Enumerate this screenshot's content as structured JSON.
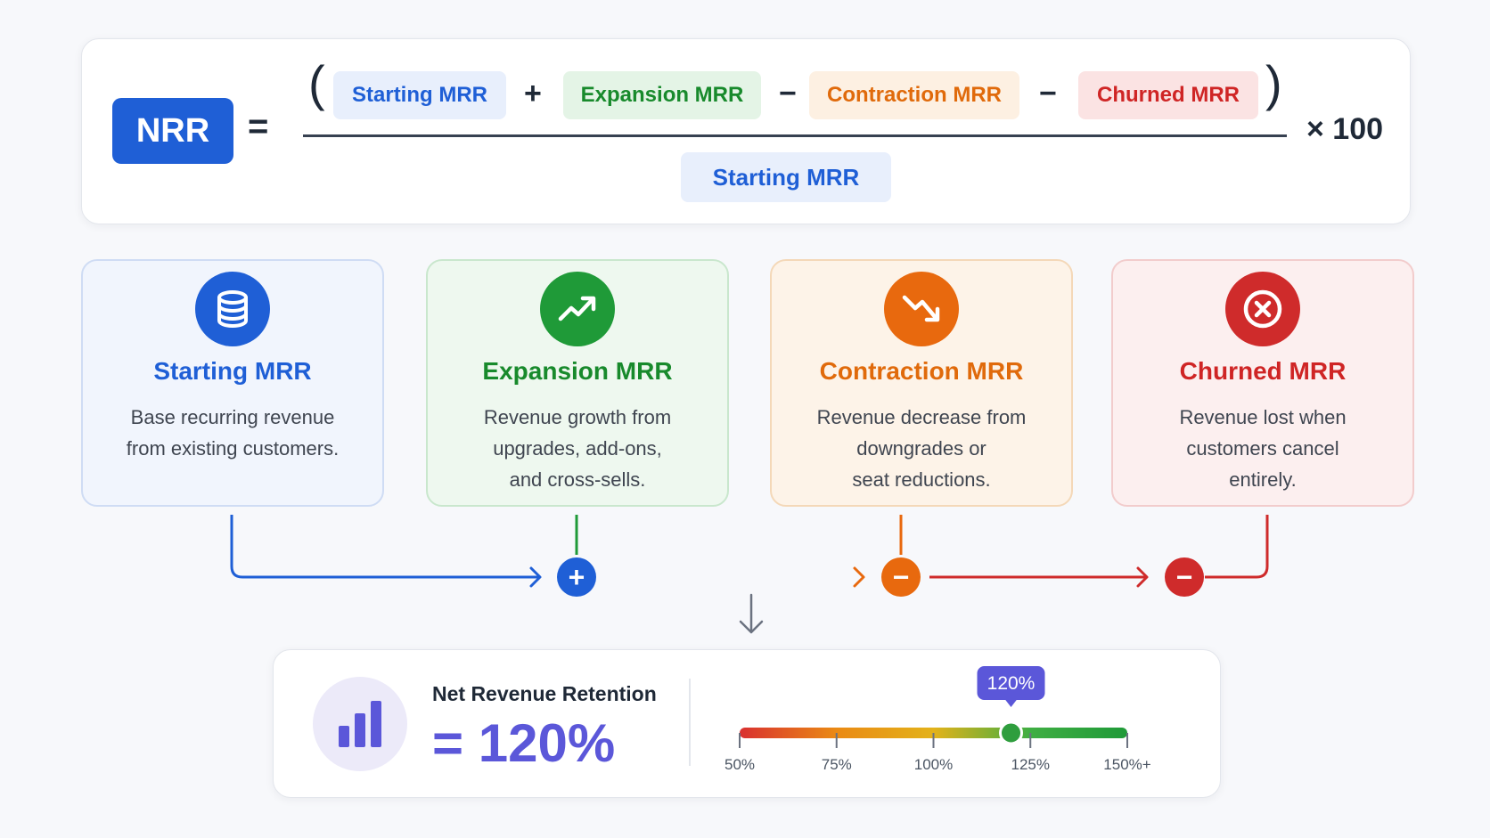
{
  "formula": {
    "lhs": "NRR",
    "equals": "=",
    "open_paren": "(",
    "close_paren": ")",
    "numerator": [
      {
        "label": "Starting MRR"
      },
      {
        "op": "+"
      },
      {
        "label": "Expansion MRR"
      },
      {
        "op": "−"
      },
      {
        "label": "Contraction MRR"
      },
      {
        "op": "−"
      },
      {
        "label": "Churned MRR"
      }
    ],
    "denominator": "Starting MRR",
    "multiplier": "× 100"
  },
  "components": [
    {
      "title": "Starting MRR",
      "icon": "database-icon",
      "color": "#1f5fd6",
      "desc_lines": [
        "Base recurring revenue",
        "from existing customers."
      ]
    },
    {
      "title": "Expansion MRR",
      "icon": "trending-up-icon",
      "color": "#1f9a38",
      "desc_lines": [
        "Revenue growth from",
        "upgrades, add-ons,",
        "and cross-sells."
      ]
    },
    {
      "title": "Contraction MRR",
      "icon": "trending-down-icon",
      "color": "#e8690e",
      "desc_lines": [
        "Revenue decrease from",
        "downgrades or",
        "seat reductions."
      ]
    },
    {
      "title": "Churned MRR",
      "icon": "x-circle-icon",
      "color": "#cf2b2b",
      "desc_lines": [
        "Revenue lost when",
        "customers cancel",
        "entirely."
      ]
    }
  ],
  "flow": {
    "operators": [
      "+",
      "−",
      "−"
    ]
  },
  "result": {
    "label": "Net Revenue Retention",
    "value": "= 120%",
    "gauge": {
      "value": 120,
      "value_label": "120%",
      "ticks": [
        {
          "value": 50,
          "label": "50%"
        },
        {
          "value": 75,
          "label": "75%"
        },
        {
          "value": 100,
          "label": "100%"
        },
        {
          "value": 125,
          "label": "125%"
        },
        {
          "value": 150,
          "label": "150%+"
        }
      ],
      "min": 50,
      "max": 150,
      "colors": [
        "#d93030",
        "#ea8a14",
        "#e3b21a",
        "#3fae43",
        "#1f9a38"
      ]
    }
  }
}
